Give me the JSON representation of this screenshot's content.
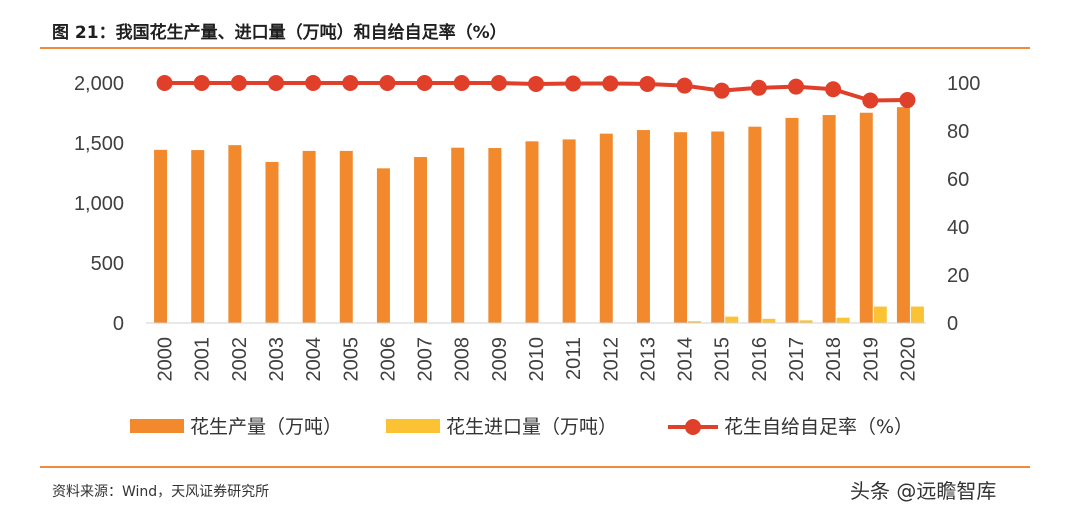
{
  "header": {
    "title": "图 21：我国花生产量、进口量（万吨）和自给自足率（%）"
  },
  "footer": {
    "source": "资料来源：Wind，天风证券研究所",
    "watermark": "头条 @远瞻智库"
  },
  "chart_data": {
    "type": "bar",
    "categories": [
      "2000",
      "2001",
      "2002",
      "2003",
      "2004",
      "2005",
      "2006",
      "2007",
      "2008",
      "2009",
      "2010",
      "2011",
      "2012",
      "2013",
      "2014",
      "2015",
      "2016",
      "2017",
      "2018",
      "2019",
      "2020"
    ],
    "series": [
      {
        "name": "花生产量（万吨）",
        "type": "bar",
        "axis": "left",
        "color": "#f28a2d",
        "values": [
          1443,
          1441,
          1482,
          1342,
          1434,
          1434,
          1289,
          1383,
          1461,
          1458,
          1514,
          1530,
          1578,
          1608,
          1590,
          1596,
          1636,
          1709,
          1733,
          1752,
          1799
        ]
      },
      {
        "name": "花生进口量（万吨）",
        "type": "bar",
        "axis": "left",
        "color": "#fbc233",
        "values": [
          0,
          0,
          0,
          0,
          0,
          0,
          0,
          0,
          0,
          0,
          0,
          0,
          0,
          0,
          15,
          53,
          35,
          22,
          44,
          137,
          137
        ]
      },
      {
        "name": "花生自给自足率（%）",
        "type": "line",
        "axis": "right",
        "color": "#e03f2a",
        "values": [
          100,
          100,
          100,
          100,
          100,
          100,
          100,
          100,
          100,
          100,
          99.6,
          99.8,
          99.8,
          99.6,
          98.9,
          96.8,
          98,
          98.5,
          97.4,
          92.7,
          92.9
        ]
      }
    ],
    "y_left": {
      "ticks": [
        "0",
        "500",
        "1,000",
        "1,500",
        "2,000"
      ],
      "min": 0,
      "max": 2000
    },
    "y_right": {
      "ticks": [
        "0",
        "20",
        "40",
        "60",
        "80",
        "100"
      ],
      "min": 0,
      "max": 100
    },
    "grid": false,
    "legend": "bottom"
  }
}
